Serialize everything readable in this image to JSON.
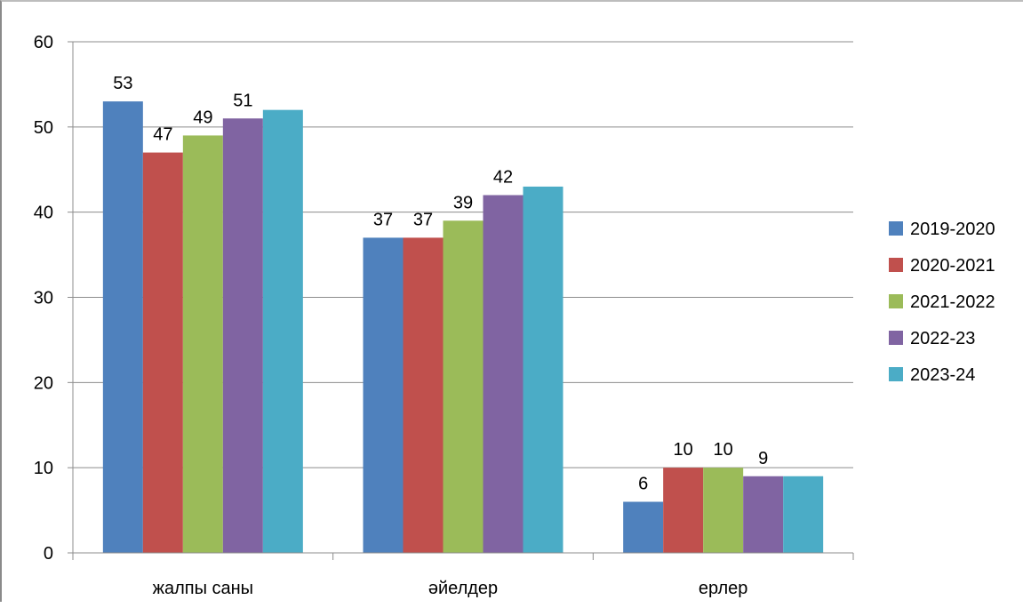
{
  "chart_data": {
    "type": "bar",
    "title": "",
    "xlabel": "",
    "ylabel": "",
    "categories": [
      "жалпы саны",
      "әйелдер",
      "ерлер"
    ],
    "series": [
      {
        "name": "2019-2020",
        "color": "#4F81BD",
        "values": [
          53,
          37,
          6
        ],
        "labels": [
          "53",
          "37",
          "6"
        ]
      },
      {
        "name": "2020-2021",
        "color": "#C0504D",
        "values": [
          47,
          37,
          10
        ],
        "labels": [
          "47",
          "37",
          "10"
        ]
      },
      {
        "name": "2021-2022",
        "color": "#9BBB59",
        "values": [
          49,
          39,
          10
        ],
        "labels": [
          "49",
          "39",
          "10"
        ]
      },
      {
        "name": "2022-23",
        "color": "#8064A2",
        "values": [
          51,
          42,
          9
        ],
        "labels": [
          "51",
          "42",
          "9"
        ]
      },
      {
        "name": "2023-24",
        "color": "#4BACC6",
        "values": [
          52,
          43,
          9
        ],
        "labels": [
          "",
          "",
          ""
        ]
      }
    ],
    "ylim": [
      0,
      60
    ],
    "yticks": [
      0,
      10,
      20,
      30,
      40,
      50,
      60
    ],
    "grid": true,
    "legend_position": "right"
  }
}
